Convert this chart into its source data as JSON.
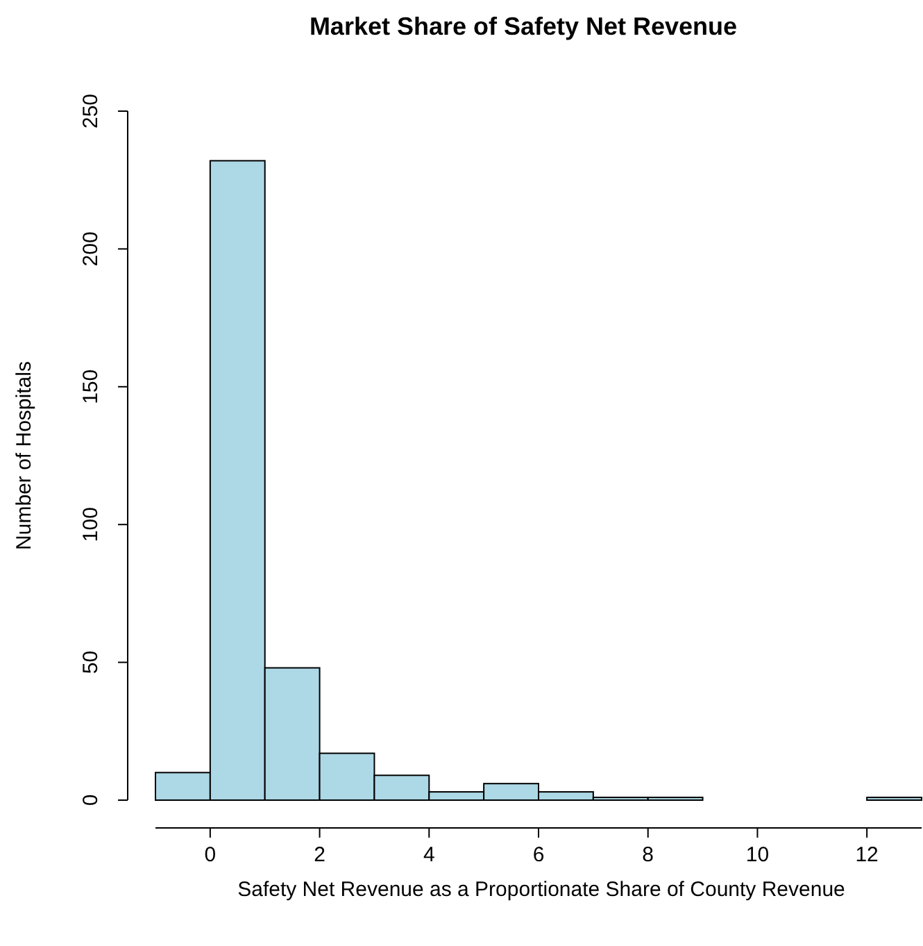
{
  "chart_data": {
    "type": "histogram",
    "title": "Market Share of Safety Net Revenue",
    "xlabel": "Safety Net Revenue as a Proportionate Share of County Revenue",
    "ylabel": "Number of Hospitals",
    "bins": [
      -1,
      0,
      1,
      2,
      3,
      4,
      5,
      6,
      7,
      8,
      9,
      10,
      11,
      12,
      13
    ],
    "values": [
      10,
      232,
      48,
      17,
      9,
      3,
      6,
      3,
      1,
      1,
      0,
      0,
      0,
      1
    ],
    "color": "#add8e6",
    "xlim": [
      -1,
      13
    ],
    "xticks": [
      0,
      2,
      4,
      6,
      8,
      10,
      12
    ],
    "ylim": [
      0,
      250
    ],
    "yticks": [
      0,
      50,
      100,
      150,
      200,
      250
    ],
    "grid": false
  }
}
